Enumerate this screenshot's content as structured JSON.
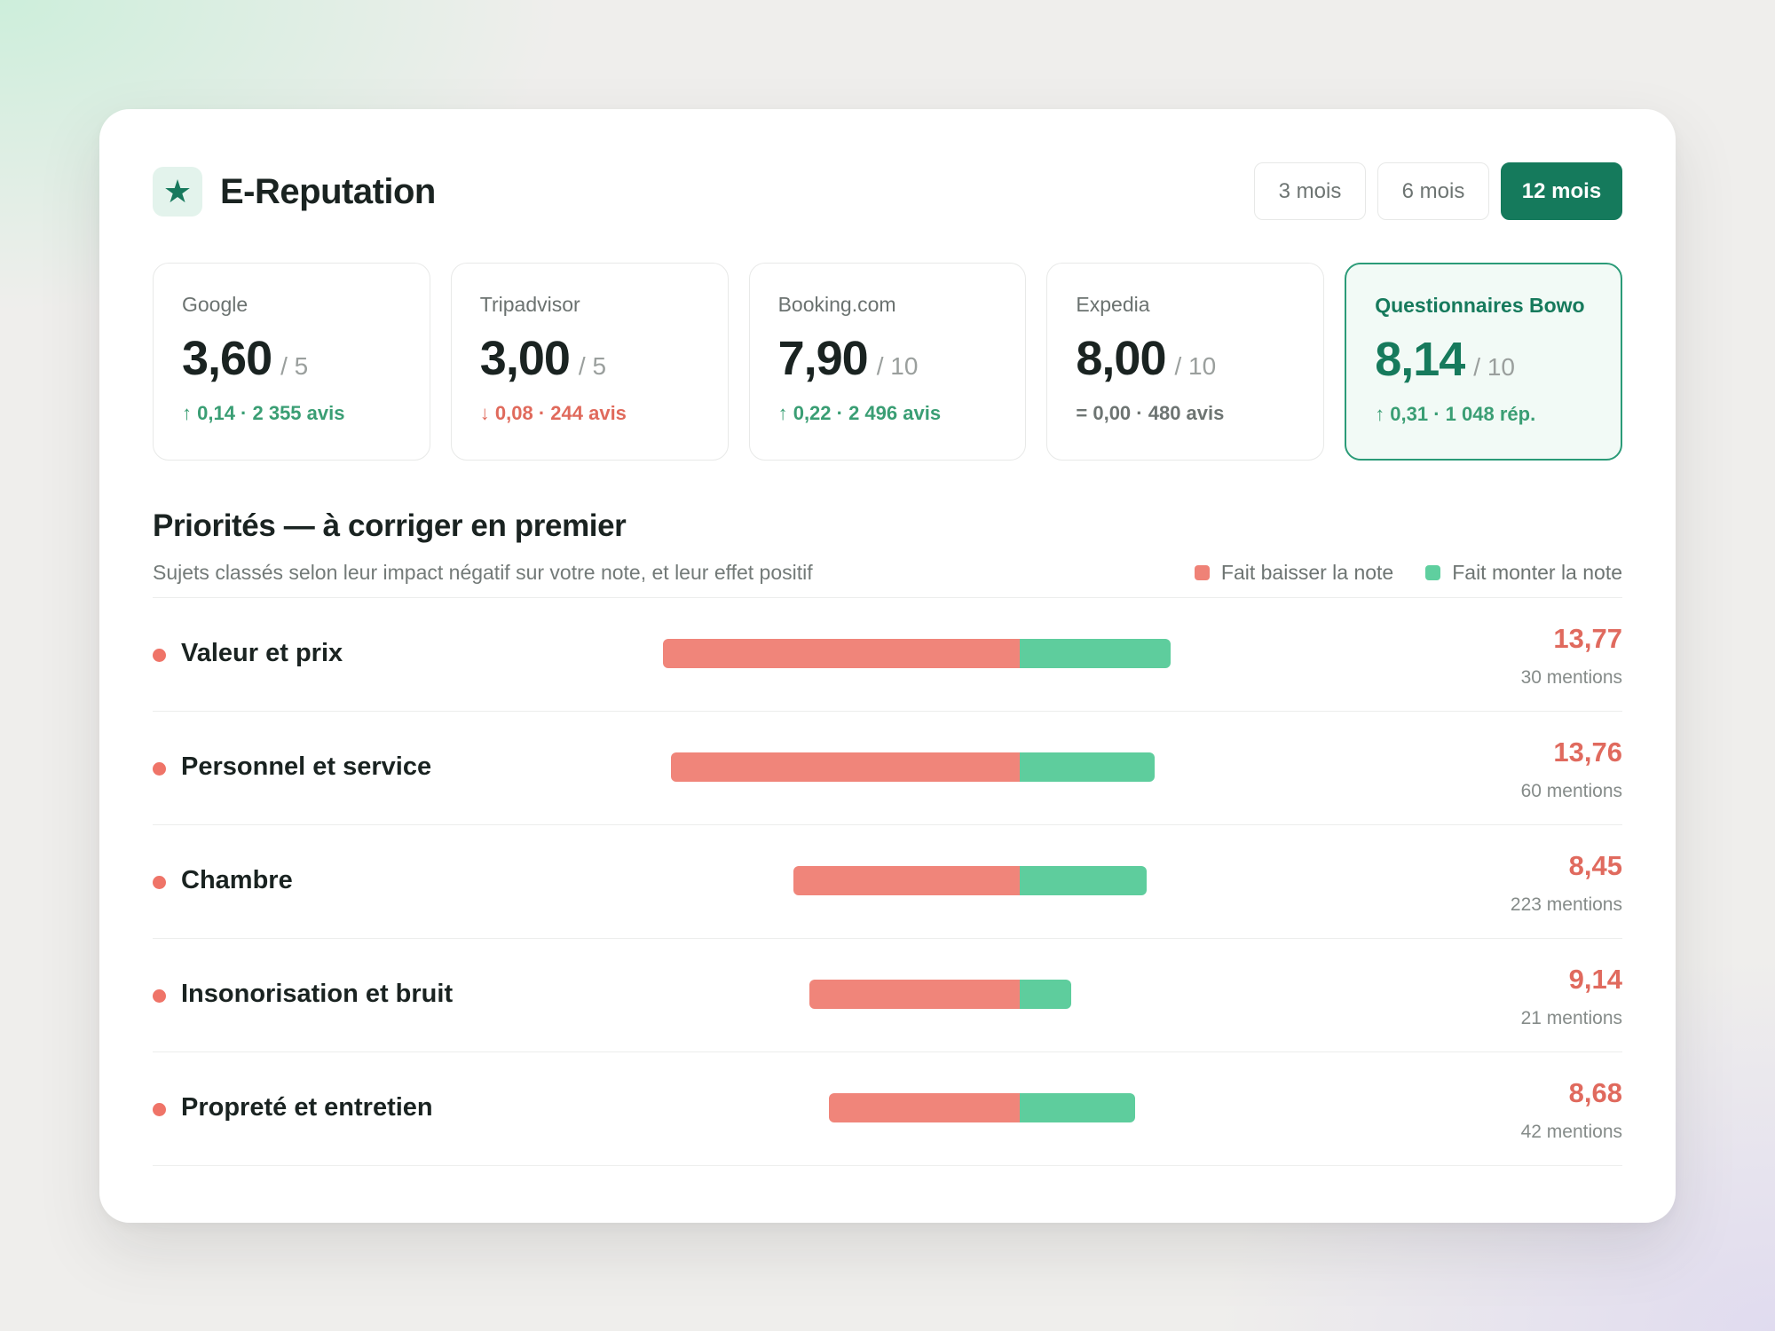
{
  "header": {
    "icon": "star-icon",
    "title": "E-Reputation",
    "periods": [
      {
        "label": "3 mois",
        "active": false
      },
      {
        "label": "6 mois",
        "active": false
      },
      {
        "label": "12 mois",
        "active": true
      }
    ]
  },
  "scores": [
    {
      "name": "Google",
      "value": "3,60",
      "scale": "/ 5",
      "delta": "↑ 0,14 · 2 355 avis",
      "trend": "up"
    },
    {
      "name": "Tripadvisor",
      "value": "3,00",
      "scale": "/ 5",
      "delta": "↓ 0,08 · 244 avis",
      "trend": "down"
    },
    {
      "name": "Booking.com",
      "value": "7,90",
      "scale": "/ 10",
      "delta": "↑ 0,22 · 2 496 avis",
      "trend": "up"
    },
    {
      "name": "Expedia",
      "value": "8,00",
      "scale": "/ 10",
      "delta": "= 0,00 · 480 avis",
      "trend": "flat"
    },
    {
      "name": "Questionnaires Bowo",
      "value": "8,14",
      "scale": "/ 10",
      "delta": "↑ 0,31 · 1 048 rép.",
      "trend": "up",
      "highlight": true
    }
  ],
  "priorities": {
    "title": "Priorités — à corriger en premier",
    "subtitle": "Sujets classés selon leur impact négatif sur votre note, et leur effet positif",
    "legend": {
      "negative": "Fait baisser la note",
      "positive": "Fait monter la note"
    },
    "colors": {
      "negative": "#f0857a",
      "positive": "#5ecd9d",
      "score": "#e06a5e"
    },
    "items": [
      {
        "label": "Valeur et prix",
        "score": "13,77",
        "mentions": "30 mentions",
        "negative": 9.0,
        "positive": 3.8
      },
      {
        "label": "Personnel et service",
        "score": "13,76",
        "mentions": "60 mentions",
        "negative": 8.8,
        "positive": 3.4
      },
      {
        "label": "Chambre",
        "score": "8,45",
        "mentions": "223 mentions",
        "negative": 5.7,
        "positive": 3.2
      },
      {
        "label": "Insonorisation et bruit",
        "score": "9,14",
        "mentions": "21 mentions",
        "negative": 5.3,
        "positive": 1.3
      },
      {
        "label": "Propreté et entretien",
        "score": "8,68",
        "mentions": "42 mentions",
        "negative": 4.8,
        "positive": 2.9
      }
    ]
  }
}
